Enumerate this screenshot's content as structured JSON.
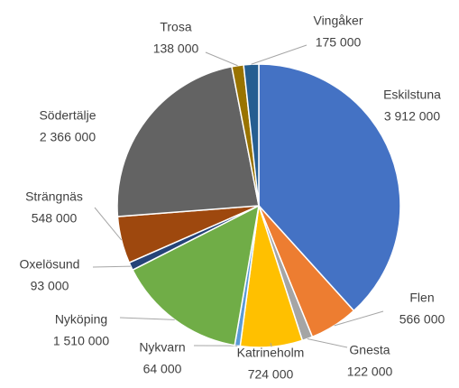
{
  "chart_data": {
    "type": "pie",
    "categories": [
      "Eskilstuna",
      "Flen",
      "Gnesta",
      "Katrineholm",
      "Nykvarn",
      "Nyköping",
      "Oxelösund",
      "Strängnäs",
      "Södertälje",
      "Trosa",
      "Vingåker"
    ],
    "values": [
      3912000,
      566000,
      122000,
      724000,
      64000,
      1510000,
      93000,
      548000,
      2366000,
      138000,
      175000
    ],
    "value_labels": [
      "3 912 000",
      "566 000",
      "122 000",
      "724 000",
      "64 000",
      "1 510 000",
      "93 000",
      "548 000",
      "2 366 000",
      "138 000",
      "175 000"
    ],
    "colors": [
      "#4472c4",
      "#ed7d31",
      "#a5a5a5",
      "#ffc000",
      "#5b9bd5",
      "#70ad47",
      "#264478",
      "#9e480e",
      "#636363",
      "#997300",
      "#255e91"
    ]
  }
}
